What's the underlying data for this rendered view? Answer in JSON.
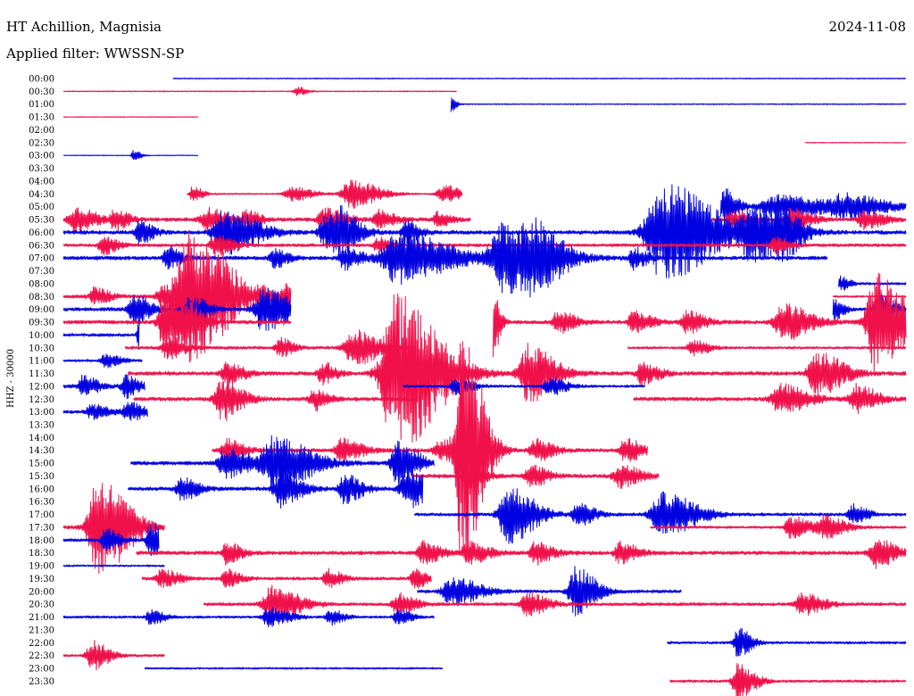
{
  "chart_data": {
    "type": "line",
    "title": "HT Achillion, Magnisia",
    "date": "2024-11-08",
    "subtitle": "Applied filter: WWSSN-SP",
    "ylabel": "HHZ - 30000",
    "colors": {
      "odd": "#0000e0",
      "even": "#f0104a",
      "text": "#000000"
    },
    "x_range_minutes": [
      0,
      30
    ],
    "traces": [
      {
        "label": "00:00",
        "start": 3.9,
        "end": 30,
        "amp": 0.8,
        "events": []
      },
      {
        "label": "00:30",
        "start": 0,
        "end": 14.0,
        "amp": 0.8,
        "events": [
          [
            8.3,
            1.2,
            0.3
          ]
        ]
      },
      {
        "label": "01:00",
        "start": 13.8,
        "end": 30,
        "amp": 0.8,
        "events": [
          [
            13.8,
            3,
            0.15
          ]
        ]
      },
      {
        "label": "01:30",
        "start": 0,
        "end": 4.8,
        "amp": 0.6,
        "events": []
      },
      {
        "label": "02:00",
        "start": null,
        "end": null,
        "amp": 0,
        "events": []
      },
      {
        "label": "02:30",
        "start": 26.4,
        "end": 30,
        "amp": 0.6,
        "events": []
      },
      {
        "label": "03:00",
        "start": 0,
        "end": 4.8,
        "amp": 0.6,
        "events": [
          [
            2.5,
            1.5,
            0.2
          ]
        ]
      },
      {
        "label": "03:30",
        "start": null,
        "end": null,
        "amp": 0,
        "events": []
      },
      {
        "label": "04:00",
        "start": null,
        "end": null,
        "amp": 0,
        "events": []
      },
      {
        "label": "04:30",
        "start": 4.4,
        "end": 14.2,
        "amp": 1.2,
        "events": [
          [
            4.6,
            2,
            0.3
          ],
          [
            8.1,
            2,
            0.6
          ],
          [
            10.2,
            4,
            0.8
          ],
          [
            13.5,
            2.5,
            0.5
          ]
        ]
      },
      {
        "label": "05:00",
        "start": 23.4,
        "end": 30,
        "amp": 2.5,
        "events": [
          [
            23.5,
            5,
            0.4
          ],
          [
            25.4,
            3,
            1.5
          ],
          [
            27.8,
            3,
            1.2
          ]
        ]
      },
      {
        "label": "05:30",
        "start": 0,
        "end": 14.5,
        "amp": 3,
        "events": [
          [
            0.4,
            3.5,
            0.6
          ],
          [
            1.8,
            3,
            0.4
          ],
          [
            5.1,
            3,
            0.6
          ],
          [
            6.5,
            2.5,
            0.4
          ],
          [
            9.3,
            3,
            0.6
          ],
          [
            11.2,
            2.5,
            0.5
          ],
          [
            13.3,
            2,
            0.4
          ]
        ]
      },
      {
        "label": "05:30b",
        "start": 23.1,
        "end": 30,
        "amp": 2.5,
        "events": [
          [
            23.8,
            2.5,
            0.5
          ],
          [
            25.9,
            3,
            0.6
          ],
          [
            28.5,
            2.5,
            0.6
          ]
        ]
      },
      {
        "label": "06:00",
        "start": 0,
        "end": 30,
        "amp": 3,
        "events": [
          [
            2.7,
            3,
            0.4
          ],
          [
            5.7,
            6,
            1.0
          ],
          [
            9.3,
            4,
            0.6
          ],
          [
            9.8,
            5,
            0.6
          ],
          [
            12.2,
            3,
            0.4
          ],
          [
            21.3,
            14,
            1.5
          ],
          [
            24.5,
            7,
            1.0
          ],
          [
            25.5,
            5,
            0.6
          ]
        ]
      },
      {
        "label": "06:30",
        "start": 0,
        "end": 30,
        "amp": 2.5,
        "events": [
          [
            1.4,
            2.5,
            0.4
          ],
          [
            5.4,
            3,
            0.5
          ],
          [
            11.2,
            2.5,
            0.4
          ],
          [
            25.3,
            2.5,
            0.4
          ]
        ]
      },
      {
        "label": "07:00",
        "start": 0,
        "end": 27.2,
        "amp": 3,
        "events": [
          [
            3.7,
            3,
            0.4
          ],
          [
            7.5,
            2.5,
            0.4
          ],
          [
            10.0,
            3,
            0.5
          ],
          [
            11.9,
            7,
            1.5
          ],
          [
            15.7,
            10,
            1.3
          ],
          [
            16.8,
            4,
            0.8
          ],
          [
            20.3,
            3,
            0.4
          ]
        ]
      },
      {
        "label": "07:30",
        "start": null,
        "end": null,
        "amp": 0,
        "events": []
      },
      {
        "label": "08:00",
        "start": 27.6,
        "end": 30,
        "amp": 2,
        "events": [
          [
            27.6,
            2,
            0.3
          ]
        ]
      },
      {
        "label": "08:30",
        "start": 0,
        "end": 8.1,
        "amp": 3,
        "events": [
          [
            1.1,
            2.5,
            0.4
          ],
          [
            3.5,
            2.5,
            0.5
          ],
          [
            4.4,
            18,
            1.1
          ],
          [
            5.7,
            3,
            0.5
          ],
          [
            7.0,
            2.5,
            0.4
          ],
          [
            7.9,
            3,
            0.4
          ]
        ]
      },
      {
        "label": "08:30b",
        "start": 27.4,
        "end": 30,
        "amp": 1.5,
        "events": []
      },
      {
        "label": "09:00",
        "start": 0,
        "end": 8.1,
        "amp": 3,
        "events": [
          [
            2.5,
            4,
            0.5
          ],
          [
            4.5,
            4,
            0.5
          ],
          [
            7.1,
            6,
            0.8
          ]
        ]
      },
      {
        "label": "09:00b",
        "start": 27.4,
        "end": 30,
        "amp": 2.5,
        "events": [
          [
            27.4,
            3,
            0.3
          ],
          [
            29.0,
            4,
            0.5
          ]
        ]
      },
      {
        "label": "09:30",
        "start": 0,
        "end": 8.1,
        "amp": 3,
        "events": [
          [
            3.6,
            8,
            0.6
          ],
          [
            4.4,
            4,
            0.5
          ]
        ]
      },
      {
        "label": "09:30b",
        "start": 15.3,
        "end": 30,
        "amp": 3,
        "events": [
          [
            15.3,
            10,
            0.2
          ],
          [
            17.6,
            3,
            0.5
          ],
          [
            20.3,
            3,
            0.5
          ],
          [
            22.2,
            3,
            0.5
          ],
          [
            25.6,
            5,
            0.8
          ],
          [
            28.9,
            14,
            0.9
          ]
        ]
      },
      {
        "label": "10:00",
        "start": 0,
        "end": 2.7,
        "amp": 2.5,
        "events": [
          [
            2.7,
            4,
            0.2
          ]
        ]
      },
      {
        "label": "10:30",
        "start": 2.2,
        "end": 12.4,
        "amp": 2.5,
        "events": [
          [
            3.7,
            3,
            0.5
          ],
          [
            7.7,
            2.5,
            0.4
          ],
          [
            10.3,
            5,
            0.8
          ]
        ]
      },
      {
        "label": "10:30b",
        "start": 20.1,
        "end": 30,
        "amp": 2,
        "events": [
          [
            22.4,
            2,
            0.5
          ]
        ]
      },
      {
        "label": "11:00",
        "start": 0,
        "end": 2.8,
        "amp": 2,
        "events": [
          [
            1.5,
            2,
            0.4
          ]
        ]
      },
      {
        "label": "11:30",
        "start": 2.3,
        "end": 30,
        "amp": 3,
        "events": [
          [
            5.8,
            3,
            0.5
          ],
          [
            9.2,
            3,
            0.4
          ],
          [
            11.8,
            22,
            1.3
          ],
          [
            16.5,
            8,
            0.8
          ],
          [
            20.6,
            3,
            0.5
          ],
          [
            26.8,
            6,
            0.8
          ]
        ]
      },
      {
        "label": "12:00",
        "start": 0,
        "end": 2.9,
        "amp": 3,
        "events": [
          [
            0.7,
            3,
            0.4
          ],
          [
            2.2,
            3,
            0.4
          ]
        ]
      },
      {
        "label": "12:00b",
        "start": 12.1,
        "end": 20.7,
        "amp": 2,
        "events": [
          [
            14.0,
            2.5,
            0.5
          ],
          [
            17.3,
            2.5,
            0.5
          ]
        ]
      },
      {
        "label": "12:30",
        "start": 2.5,
        "end": 12.6,
        "amp": 3,
        "events": [
          [
            5.6,
            6,
            0.6
          ],
          [
            8.9,
            3,
            0.4
          ]
        ]
      },
      {
        "label": "12:30b",
        "start": 20.3,
        "end": 30,
        "amp": 3,
        "events": [
          [
            25.5,
            4,
            0.8
          ],
          [
            28.2,
            4,
            0.6
          ]
        ]
      },
      {
        "label": "13:00",
        "start": 0,
        "end": 3.0,
        "amp": 2.5,
        "events": [
          [
            1.0,
            2,
            0.5
          ],
          [
            2.3,
            2.5,
            0.5
          ]
        ]
      },
      {
        "label": "13:30",
        "start": null,
        "end": null,
        "amp": 0,
        "events": []
      },
      {
        "label": "14:00",
        "start": null,
        "end": null,
        "amp": 0,
        "events": []
      },
      {
        "label": "14:30",
        "start": 5.3,
        "end": 20.8,
        "amp": 3,
        "events": [
          [
            5.8,
            3,
            0.5
          ],
          [
            9.9,
            3,
            0.6
          ],
          [
            13.5,
            3,
            0.8
          ],
          [
            14.2,
            32,
            0.6
          ],
          [
            16.8,
            3,
            0.5
          ],
          [
            20.0,
            3,
            0.5
          ]
        ]
      },
      {
        "label": "15:00",
        "start": 2.4,
        "end": 13.2,
        "amp": 3,
        "events": [
          [
            5.8,
            4,
            0.8
          ],
          [
            7.5,
            7,
            1.1
          ],
          [
            11.9,
            6,
            0.6
          ]
        ]
      },
      {
        "label": "15:30",
        "start": 12.4,
        "end": 21.2,
        "amp": 3,
        "events": [
          [
            14.4,
            3,
            0.5
          ],
          [
            16.6,
            3,
            0.5
          ],
          [
            19.8,
            3,
            0.6
          ]
        ]
      },
      {
        "label": "16:00",
        "start": 2.3,
        "end": 12.8,
        "amp": 3,
        "events": [
          [
            4.2,
            3,
            0.5
          ],
          [
            7.7,
            5,
            0.6
          ],
          [
            10.0,
            4,
            0.5
          ],
          [
            12.3,
            5,
            0.8
          ]
        ]
      },
      {
        "label": "17:00",
        "start": 12.5,
        "end": 30,
        "amp": 2.5,
        "events": [
          [
            15.8,
            8,
            0.8
          ],
          [
            18.3,
            3,
            0.5
          ],
          [
            21.3,
            6,
            1.0
          ],
          [
            28.1,
            3,
            0.4
          ]
        ]
      },
      {
        "label": "17:30",
        "start": 0,
        "end": 3.6,
        "amp": 3,
        "events": [
          [
            1.2,
            14,
            0.9
          ]
        ]
      },
      {
        "label": "17:30b",
        "start": 20.9,
        "end": 30,
        "amp": 2,
        "events": [
          [
            25.9,
            3,
            0.6
          ],
          [
            27.1,
            3,
            0.6
          ]
        ]
      },
      {
        "label": "18:00",
        "start": 0,
        "end": 3.4,
        "amp": 2.5,
        "events": [
          [
            1.5,
            3,
            0.4
          ],
          [
            3.1,
            5,
            0.4
          ]
        ]
      },
      {
        "label": "18:30",
        "start": 2.6,
        "end": 30,
        "amp": 3,
        "events": [
          [
            5.8,
            3,
            0.4
          ],
          [
            12.8,
            3,
            0.5
          ],
          [
            14.4,
            3,
            0.6
          ],
          [
            16.8,
            3,
            0.5
          ],
          [
            19.8,
            3,
            0.5
          ],
          [
            28.9,
            4,
            0.6
          ]
        ]
      },
      {
        "label": "19:00",
        "start": 0,
        "end": 3.6,
        "amp": 1.5,
        "events": []
      },
      {
        "label": "19:30",
        "start": 2.8,
        "end": 13.1,
        "amp": 2.5,
        "events": [
          [
            3.5,
            2.5,
            0.5
          ],
          [
            5.8,
            2.5,
            0.4
          ],
          [
            9.4,
            2.5,
            0.4
          ],
          [
            12.5,
            2.5,
            0.4
          ]
        ]
      },
      {
        "label": "20:00",
        "start": 12.6,
        "end": 22.0,
        "amp": 2.5,
        "events": [
          [
            13.8,
            4,
            0.8
          ],
          [
            18.2,
            7,
            0.6
          ]
        ]
      },
      {
        "label": "20:30",
        "start": 5.0,
        "end": 30,
        "amp": 2.5,
        "events": [
          [
            7.4,
            5,
            0.8
          ],
          [
            11.9,
            3,
            0.5
          ],
          [
            16.5,
            3,
            0.6
          ],
          [
            26.3,
            3,
            0.6
          ]
        ]
      },
      {
        "label": "21:00",
        "start": 0,
        "end": 13.2,
        "amp": 2,
        "events": [
          [
            3.1,
            2,
            0.4
          ],
          [
            7.3,
            2.5,
            0.6
          ],
          [
            9.5,
            2,
            0.4
          ],
          [
            11.9,
            2,
            0.4
          ]
        ]
      },
      {
        "label": "21:30",
        "start": null,
        "end": null,
        "amp": 0,
        "events": []
      },
      {
        "label": "22:00",
        "start": 21.5,
        "end": 30,
        "amp": 2,
        "events": [
          [
            24.0,
            4,
            0.4
          ]
        ]
      },
      {
        "label": "22:30",
        "start": 0,
        "end": 3.6,
        "amp": 2,
        "events": [
          [
            1.0,
            4,
            0.5
          ]
        ]
      },
      {
        "label": "23:00",
        "start": 2.9,
        "end": 13.5,
        "amp": 1.5,
        "events": []
      },
      {
        "label": "23:30",
        "start": 21.6,
        "end": 30,
        "amp": 2,
        "events": [
          [
            24.0,
            5,
            0.5
          ]
        ]
      }
    ],
    "row_labels": [
      "00:00",
      "00:30",
      "01:00",
      "01:30",
      "02:00",
      "02:30",
      "03:00",
      "03:30",
      "04:00",
      "04:30",
      "05:00",
      "05:30",
      "06:00",
      "06:30",
      "07:00",
      "07:30",
      "08:00",
      "08:30",
      "09:00",
      "09:30",
      "10:00",
      "10:30",
      "11:00",
      "11:30",
      "12:00",
      "12:30",
      "13:00",
      "13:30",
      "14:00",
      "14:30",
      "15:00",
      "15:30",
      "16:00",
      "16:30",
      "17:00",
      "17:30",
      "18:00",
      "18:30",
      "19:00",
      "19:30",
      "20:00",
      "20:30",
      "21:00",
      "21:30",
      "22:00",
      "22:30",
      "23:00",
      "23:30"
    ]
  }
}
